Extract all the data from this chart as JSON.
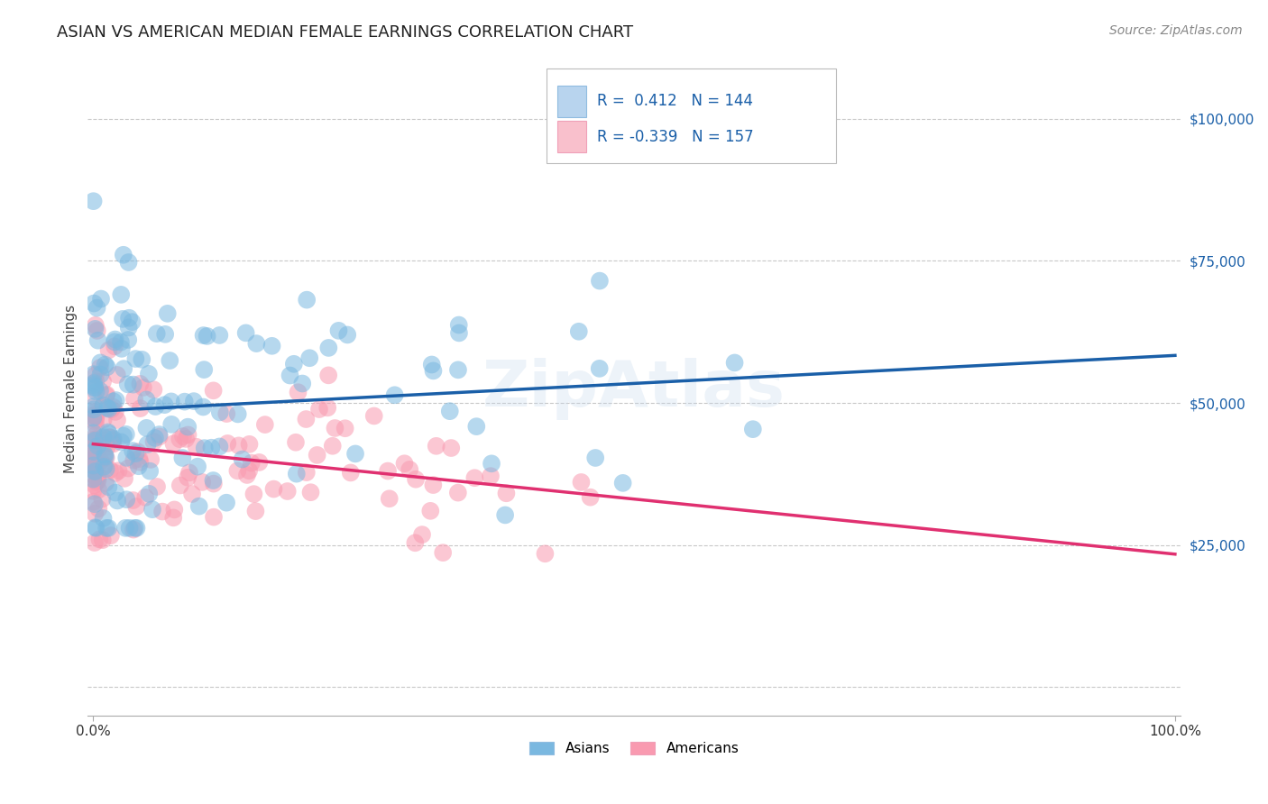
{
  "title": "ASIAN VS AMERICAN MEDIAN FEMALE EARNINGS CORRELATION CHART",
  "source": "Source: ZipAtlas.com",
  "ylabel": "Median Female Earnings",
  "background_color": "#ffffff",
  "grid_color": "#c8c8c8",
  "watermark": "ZipAtlas",
  "asian_color": "#7ab8e0",
  "american_color": "#f99ab0",
  "asian_line_color": "#1a5fa8",
  "american_line_color": "#e03070",
  "asian_R": 0.412,
  "asian_N": 144,
  "american_R": -0.339,
  "american_N": 157,
  "xmin": 0.0,
  "xmax": 1.0,
  "ymin": -5000,
  "ymax": 110000,
  "yticks": [
    0,
    25000,
    50000,
    75000,
    100000
  ],
  "ytick_labels": [
    "",
    "$25,000",
    "$50,000",
    "$75,000",
    "$100,000"
  ],
  "xtick_labels": [
    "0.0%",
    "100.0%"
  ],
  "title_fontsize": 13,
  "axis_label_fontsize": 11,
  "tick_fontsize": 11,
  "legend_fontsize": 12,
  "source_fontsize": 10
}
